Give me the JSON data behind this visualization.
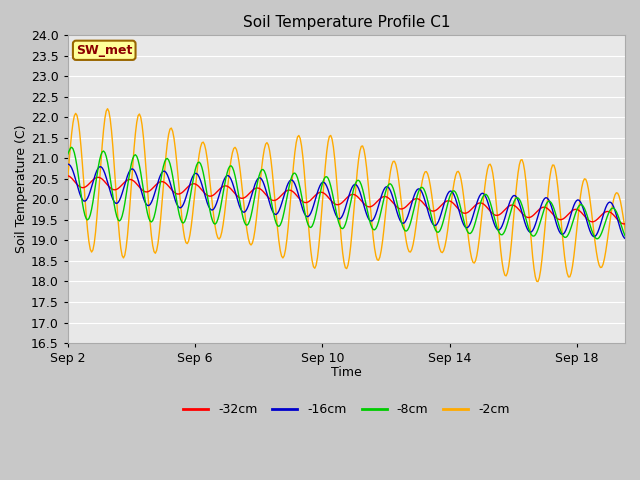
{
  "title": "Soil Temperature Profile C1",
  "xlabel": "Time",
  "ylabel": "Soil Temperature (C)",
  "ylim": [
    16.5,
    24.0
  ],
  "yticks": [
    16.5,
    17.0,
    17.5,
    18.0,
    18.5,
    19.0,
    19.5,
    20.0,
    20.5,
    21.0,
    21.5,
    22.0,
    22.5,
    23.0,
    23.5,
    24.0
  ],
  "xtick_positions": [
    0,
    4,
    8,
    12,
    16
  ],
  "xtick_labels": [
    "Sep 2",
    "Sep 6",
    "Sep 10",
    "Sep 14",
    "Sep 18"
  ],
  "xlim": [
    0,
    17.5
  ],
  "fig_bg": "#c8c8c8",
  "plot_bg": "#e8e8e8",
  "grid_color": "#ffffff",
  "line_colors": {
    "-32cm": "#ff0000",
    "-16cm": "#0000cc",
    "-8cm": "#00cc00",
    "-2cm": "#ffaa00"
  },
  "annotation_text": "SW_met",
  "annotation_bg": "#ffff99",
  "annotation_border": "#996600",
  "title_fontsize": 11,
  "label_fontsize": 9,
  "tick_fontsize": 9
}
